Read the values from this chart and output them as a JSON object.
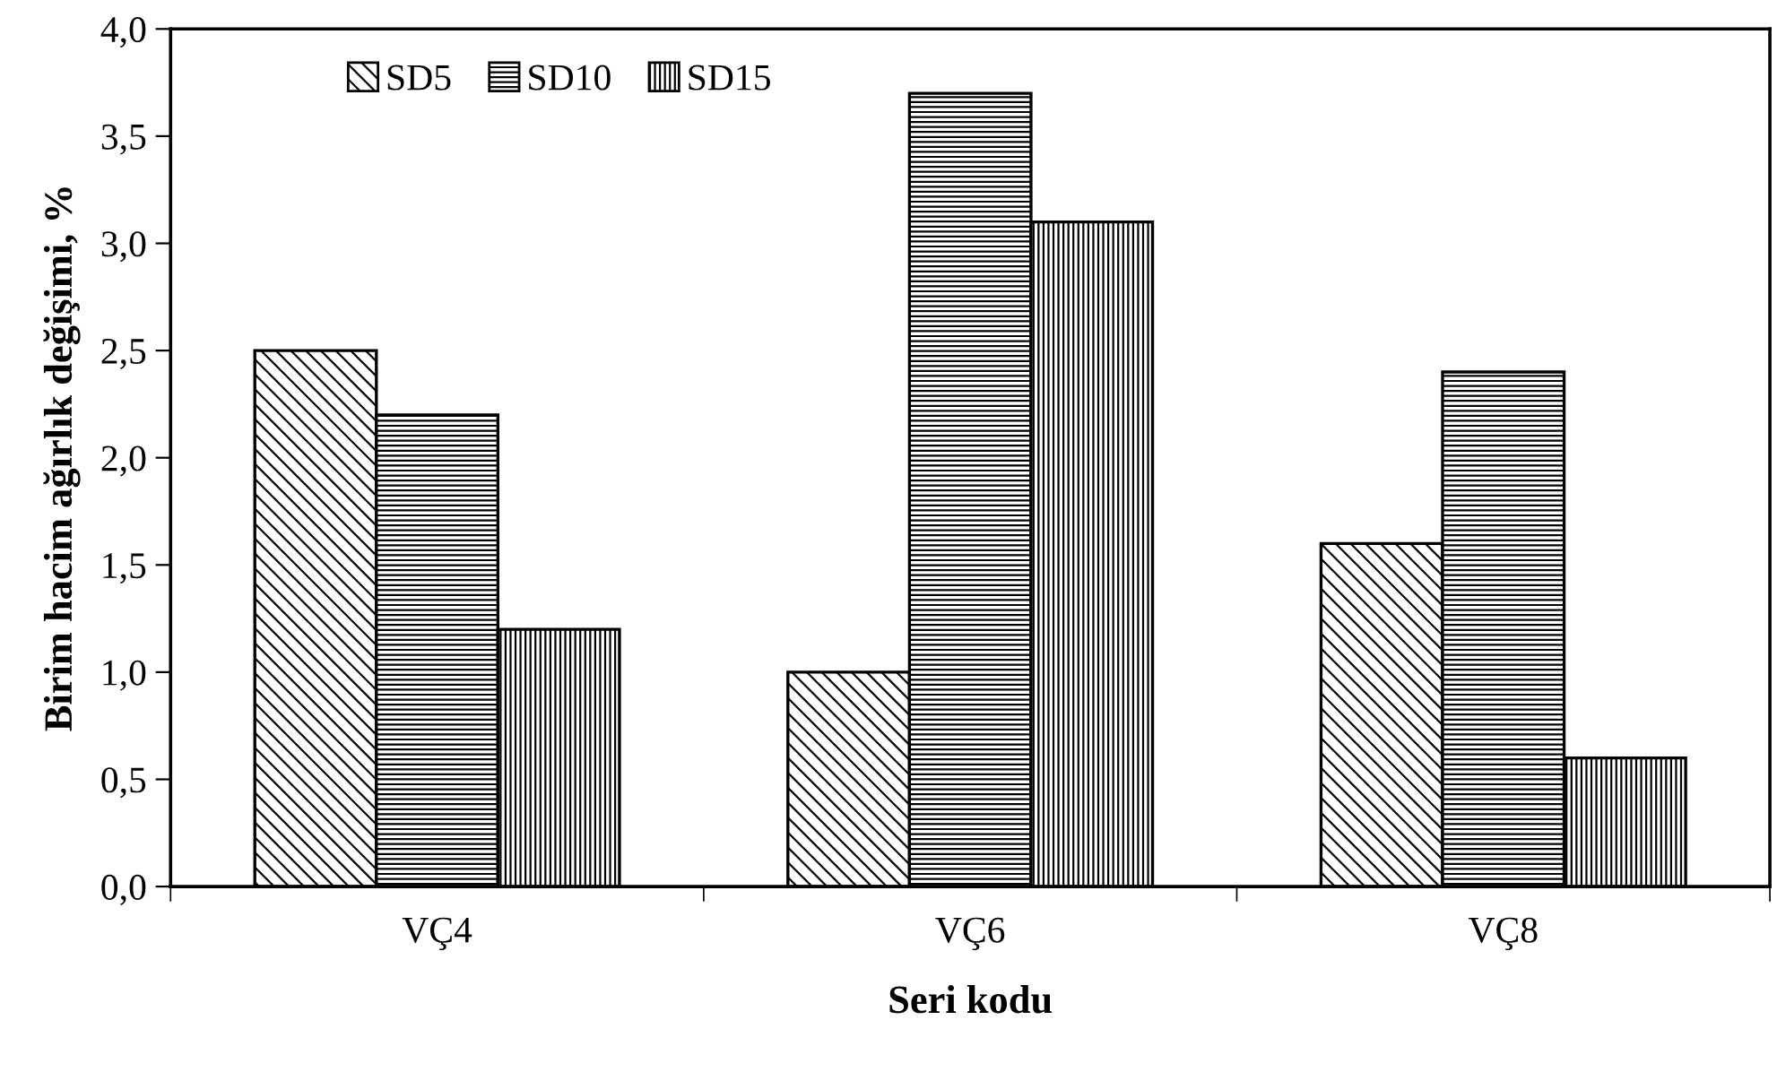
{
  "chart_data": {
    "type": "bar",
    "xlabel": "Seri kodu",
    "ylabel": "Birim hacim ağırlık değişimi, %",
    "categories": [
      "VÇ4",
      "VÇ6",
      "VÇ8"
    ],
    "series": [
      {
        "name": "SD5",
        "color": "#000000",
        "values": [
          2.5,
          1.0,
          1.6
        ]
      },
      {
        "name": "SD10",
        "color": "#000000",
        "values": [
          2.2,
          3.7,
          2.4
        ]
      },
      {
        "name": "SD15",
        "color": "#000000",
        "values": [
          1.2,
          3.1,
          0.6
        ]
      }
    ],
    "ylim": [
      0,
      4
    ],
    "yticks": [
      {
        "value": 0,
        "label": "0,0"
      },
      {
        "value": 0.5,
        "label": "0,5"
      },
      {
        "value": 1,
        "label": "1,0"
      },
      {
        "value": 1.5,
        "label": "1,5"
      },
      {
        "value": 2,
        "label": "2,0"
      },
      {
        "value": 2.5,
        "label": "2,5"
      },
      {
        "value": 3,
        "label": "3,0"
      },
      {
        "value": 3.5,
        "label": "3,5"
      },
      {
        "value": 4,
        "label": "4,0"
      }
    ],
    "legend": "top left",
    "grid": false
  }
}
